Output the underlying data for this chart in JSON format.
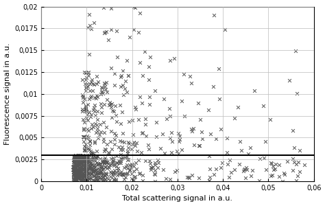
{
  "title": "",
  "xlabel": "Total scattering signal in a.u.",
  "ylabel": "Fluorescence signal in a.u.",
  "xlim": [
    0,
    0.06
  ],
  "ylim": [
    0,
    0.02
  ],
  "xticks": [
    0,
    0.01,
    0.02,
    0.03,
    0.04,
    0.05,
    0.06
  ],
  "yticks": [
    0,
    0.0025,
    0.005,
    0.0075,
    0.01,
    0.0125,
    0.015,
    0.0175,
    0.02
  ],
  "hline_y": 0.003,
  "hline_color": "#000000",
  "hline_lw": 1.5,
  "marker": "x",
  "marker_color": "#555555",
  "marker_size": 3.5,
  "marker_lw": 0.7,
  "grid_color": "#bbbbbb",
  "grid_lw": 0.5,
  "bg_color": "#ffffff",
  "seed": 7,
  "n_dense": 500,
  "n_above": 200,
  "n_scattered": 150
}
